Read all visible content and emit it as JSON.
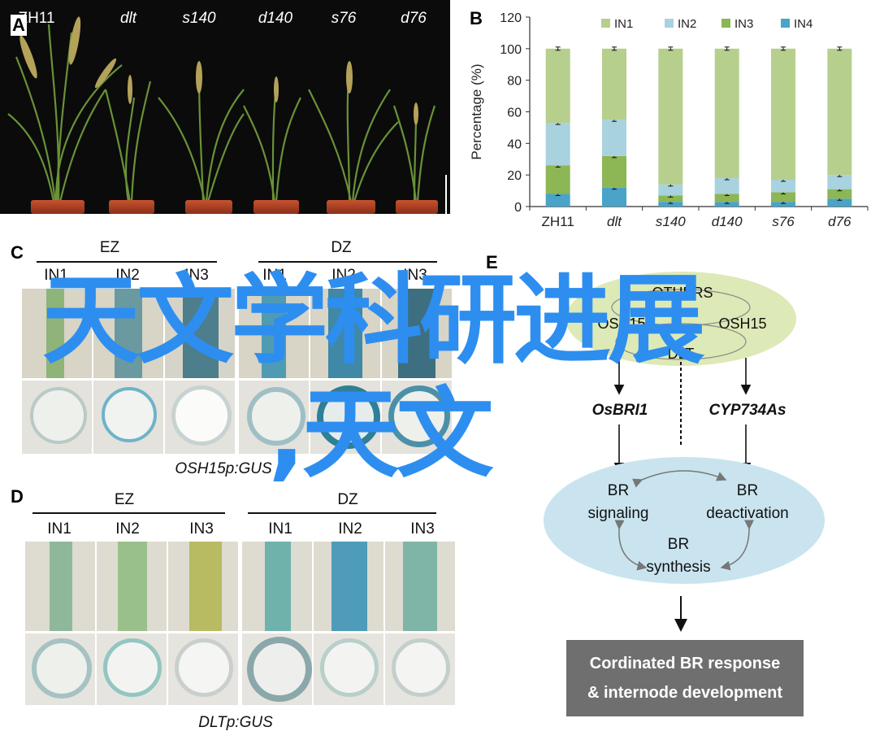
{
  "panels": {
    "a": {
      "letter": "A",
      "labels": [
        "ZH11",
        "dlt",
        "s140",
        "d140",
        "s76",
        "d76"
      ]
    },
    "b": {
      "letter": "B"
    },
    "c": {
      "letter": "C",
      "groups": [
        "EZ",
        "DZ"
      ],
      "cols": [
        "IN1",
        "IN2",
        "IN3",
        "IN1",
        "IN2",
        "IN3"
      ],
      "caption": "OSH15p:GUS"
    },
    "d": {
      "letter": "D",
      "groups": [
        "EZ",
        "DZ"
      ],
      "cols": [
        "IN1",
        "IN2",
        "IN3",
        "IN1",
        "IN2",
        "IN3"
      ],
      "caption": "DLTp:GUS"
    },
    "e": {
      "letter": "E",
      "top_labels": [
        "OTHERS",
        "OSH15",
        "OSH15",
        "DLT"
      ],
      "genes": [
        "OsBRI1",
        "CYP734As"
      ],
      "br_signaling": [
        "BR",
        "signaling"
      ],
      "br_deactivation": [
        "BR",
        "deactivation"
      ],
      "br_synthesis": [
        "BR",
        "synthesis"
      ],
      "response": [
        "Cordinated BR response",
        "& internode development"
      ]
    }
  },
  "watermark": {
    "line1": "天文学科研进展",
    "line2": ",天文",
    "color": "#2d8ef0"
  },
  "chart_data": {
    "type": "bar",
    "stacked": true,
    "categories": [
      "ZH11",
      "dlt",
      "s140",
      "d140",
      "s76",
      "d76"
    ],
    "italic_categories": [
      false,
      true,
      true,
      true,
      true,
      true
    ],
    "series": [
      {
        "name": "IN4",
        "color": "#4aa3c8",
        "values": [
          8,
          12,
          3,
          3,
          3,
          5
        ]
      },
      {
        "name": "IN3",
        "color": "#8db654",
        "values": [
          18,
          20,
          4,
          5,
          6,
          6
        ]
      },
      {
        "name": "IN2",
        "color": "#a9d2df",
        "values": [
          27,
          23,
          7,
          10,
          8,
          9
        ]
      },
      {
        "name": "IN1",
        "color": "#b6cf8d",
        "values": [
          47,
          45,
          86,
          82,
          83,
          80
        ]
      }
    ],
    "legend_order": [
      "IN1",
      "IN2",
      "IN3",
      "IN4"
    ],
    "ylabel": "Percentage (%)",
    "ylim": [
      0,
      120
    ],
    "yticks": [
      0,
      20,
      40,
      60,
      80,
      100,
      120
    ],
    "legend_position": "top"
  }
}
